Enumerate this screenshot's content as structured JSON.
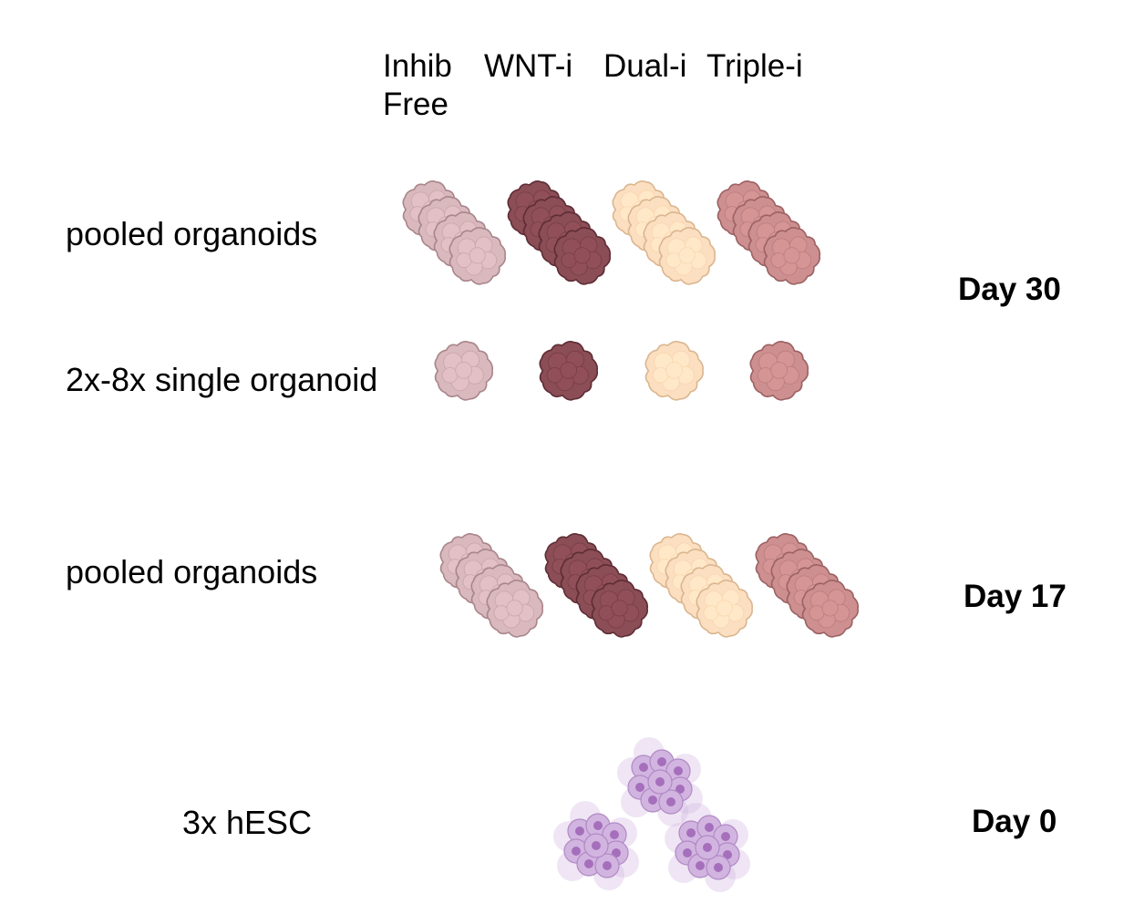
{
  "columns": [
    {
      "line1": "Inhib",
      "line2": "Free",
      "fill": "#d9b9bd",
      "stroke": "#a9868b"
    },
    {
      "line1": "WNT-i",
      "line2": "",
      "fill": "#8b4d56",
      "stroke": "#5e2d35"
    },
    {
      "line1": "Dual-i",
      "line2": "",
      "fill": "#fbdfc0",
      "stroke": "#dbb690"
    },
    {
      "line1": "Triple-i",
      "line2": "",
      "fill": "#cd8f8f",
      "stroke": "#9c6264"
    }
  ],
  "rows": {
    "d30_pooled": "pooled organoids",
    "d30_single": "2x-8x single organoid",
    "d17_pooled": "pooled organoids",
    "d0_hesc": "3x hESC"
  },
  "days": {
    "day30": "Day 30",
    "day17": "Day 17",
    "day0": "Day 0"
  },
  "colors": {
    "hesc_fill": "#d2b4e0",
    "hesc_stroke": "#b08ac4",
    "hesc_nucleus": "#a56fbc"
  }
}
